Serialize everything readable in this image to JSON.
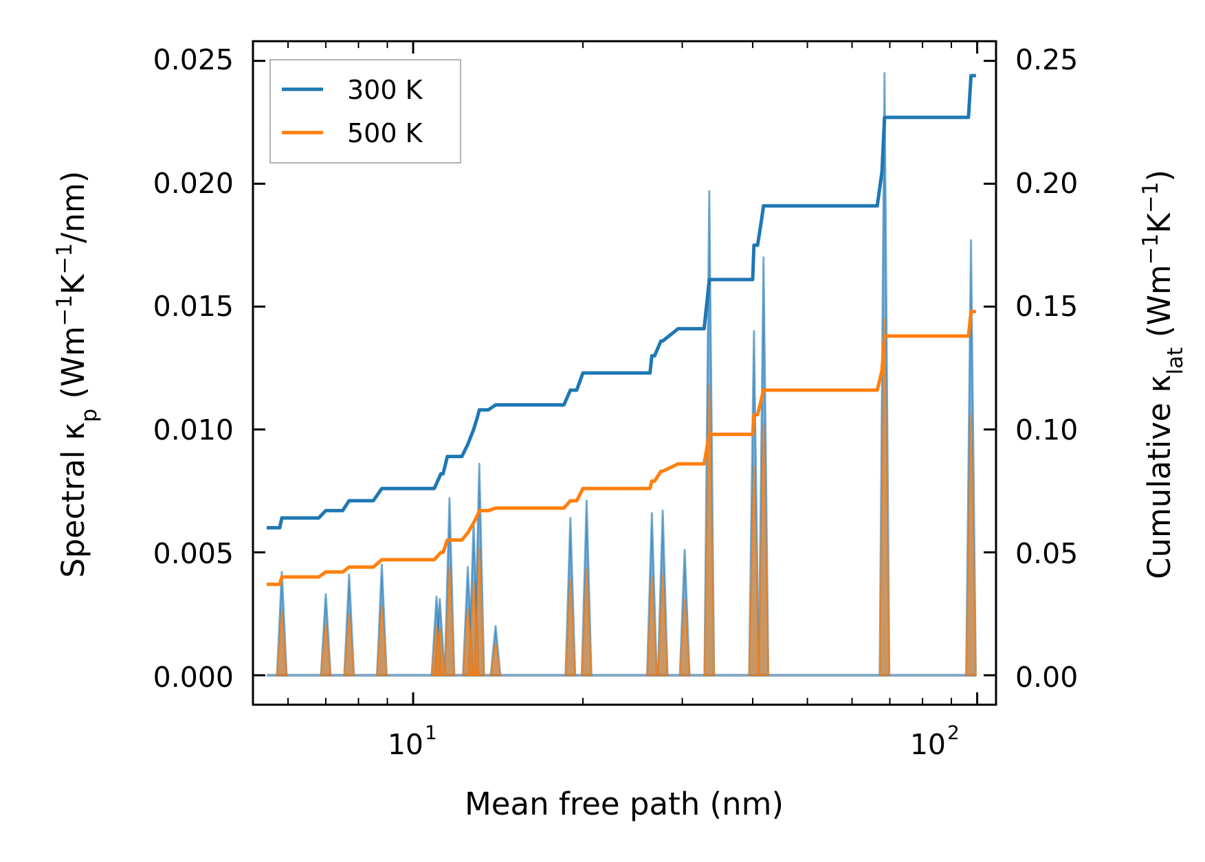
{
  "chart_data": {
    "type": "line",
    "xscale": "log",
    "xlabel": "Mean free path (nm)",
    "xlim": [
      5.2,
      108
    ],
    "x_ticks": [
      {
        "value": 10,
        "base": "10",
        "exp": "1"
      },
      {
        "value": 100,
        "base": "10",
        "exp": "2"
      }
    ],
    "ylabel_left": {
      "prefix": "Spectral κ",
      "sub": "p",
      "mid": " (Wm",
      "sup1": "−1",
      "mid2": "K",
      "sup2": "−1",
      "suffix": "/nm)"
    },
    "ylabel_right": {
      "prefix": "Cumulative κ",
      "sub": "lat",
      "mid": " (Wm",
      "sup1": "−1",
      "mid2": "K",
      "sup2": "−1",
      "suffix": ")"
    },
    "ylim_left": [
      -0.0012,
      0.0258
    ],
    "ylim_right": [
      -0.012,
      0.258
    ],
    "yticks_left": [
      "0.000",
      "0.005",
      "0.010",
      "0.015",
      "0.020",
      "0.025"
    ],
    "yticks_right": [
      "0.00",
      "0.05",
      "0.10",
      "0.15",
      "0.20",
      "0.25"
    ],
    "legend": {
      "placement": "top-left",
      "entries": [
        {
          "label": "300 K",
          "color": "#1f77b4"
        },
        {
          "label": "500 K",
          "color": "#ff7f0e"
        }
      ]
    },
    "spectral_peaks": [
      {
        "x": 5.85,
        "y300": 0.0042,
        "y500": 0.0026
      },
      {
        "x": 7.0,
        "y300": 0.0033,
        "y500": 0.0021
      },
      {
        "x": 7.7,
        "y300": 0.0041,
        "y500": 0.0025
      },
      {
        "x": 8.8,
        "y300": 0.0045,
        "y500": 0.0028
      },
      {
        "x": 11.0,
        "y300": 0.0032,
        "y500": 0.002
      },
      {
        "x": 11.15,
        "y300": 0.0031,
        "y500": 0.0019
      },
      {
        "x": 11.6,
        "y300": 0.0072,
        "y500": 0.0044
      },
      {
        "x": 12.5,
        "y300": 0.0044,
        "y500": 0.0027
      },
      {
        "x": 12.8,
        "y300": 0.0062,
        "y500": 0.0038
      },
      {
        "x": 13.1,
        "y300": 0.0086,
        "y500": 0.0052
      },
      {
        "x": 14.0,
        "y300": 0.002,
        "y500": 0.0013
      },
      {
        "x": 19.0,
        "y300": 0.0064,
        "y500": 0.0039
      },
      {
        "x": 20.3,
        "y300": 0.0071,
        "y500": 0.0043
      },
      {
        "x": 26.5,
        "y300": 0.0066,
        "y500": 0.004
      },
      {
        "x": 27.7,
        "y300": 0.0067,
        "y500": 0.0041
      },
      {
        "x": 30.3,
        "y300": 0.0051,
        "y500": 0.0031
      },
      {
        "x": 33.5,
        "y300": 0.0197,
        "y500": 0.0118
      },
      {
        "x": 40.2,
        "y300": 0.014,
        "y500": 0.0085
      },
      {
        "x": 41.8,
        "y300": 0.017,
        "y500": 0.0102
      },
      {
        "x": 68.5,
        "y300": 0.0245,
        "y500": 0.0145
      },
      {
        "x": 97.5,
        "y300": 0.0177,
        "y500": 0.0106
      }
    ],
    "series": [
      {
        "name": "300 K",
        "color": "#1f77b4",
        "x": [
          5.5,
          5.8,
          5.85,
          6.8,
          7.0,
          7.5,
          7.7,
          8.5,
          8.8,
          10.9,
          11.0,
          11.2,
          11.3,
          11.5,
          11.7,
          12.2,
          12.5,
          12.8,
          13.0,
          13.1,
          13.6,
          14.0,
          18.5,
          19.0,
          19.5,
          20.0,
          20.3,
          26.3,
          26.5,
          26.8,
          27.5,
          27.7,
          29.5,
          30.3,
          32.8,
          33.5,
          38.5,
          40.0,
          40.2,
          40.8,
          41.5,
          41.8,
          66.5,
          67.8,
          68.5,
          95.5,
          96.5,
          97.5,
          99.5
        ],
        "y": [
          0.06,
          0.06,
          0.064,
          0.064,
          0.067,
          0.067,
          0.071,
          0.071,
          0.076,
          0.076,
          0.078,
          0.082,
          0.082,
          0.089,
          0.089,
          0.089,
          0.094,
          0.1,
          0.105,
          0.108,
          0.108,
          0.11,
          0.11,
          0.116,
          0.116,
          0.123,
          0.123,
          0.123,
          0.13,
          0.13,
          0.136,
          0.136,
          0.141,
          0.141,
          0.141,
          0.161,
          0.161,
          0.161,
          0.175,
          0.175,
          0.186,
          0.191,
          0.191,
          0.205,
          0.227,
          0.227,
          0.227,
          0.244,
          0.244
        ]
      },
      {
        "name": "500 K",
        "color": "#ff7f0e",
        "x": [
          5.5,
          5.8,
          5.85,
          6.8,
          7.0,
          7.5,
          7.7,
          8.5,
          8.8,
          10.9,
          11.0,
          11.2,
          11.3,
          11.5,
          11.7,
          12.2,
          12.5,
          12.8,
          13.0,
          13.1,
          13.6,
          14.0,
          18.5,
          19.0,
          19.5,
          20.0,
          20.3,
          26.3,
          26.5,
          26.8,
          27.5,
          27.7,
          29.5,
          30.3,
          32.8,
          33.5,
          38.5,
          40.0,
          40.2,
          40.8,
          41.5,
          41.8,
          66.5,
          67.8,
          68.5,
          95.5,
          96.5,
          97.5,
          99.5
        ],
        "y": [
          0.037,
          0.037,
          0.04,
          0.04,
          0.042,
          0.042,
          0.044,
          0.044,
          0.047,
          0.047,
          0.048,
          0.05,
          0.05,
          0.055,
          0.055,
          0.055,
          0.058,
          0.062,
          0.065,
          0.067,
          0.067,
          0.068,
          0.068,
          0.071,
          0.071,
          0.076,
          0.076,
          0.076,
          0.079,
          0.079,
          0.083,
          0.083,
          0.086,
          0.086,
          0.086,
          0.098,
          0.098,
          0.098,
          0.106,
          0.106,
          0.113,
          0.116,
          0.116,
          0.124,
          0.138,
          0.138,
          0.138,
          0.148,
          0.148
        ]
      }
    ]
  }
}
